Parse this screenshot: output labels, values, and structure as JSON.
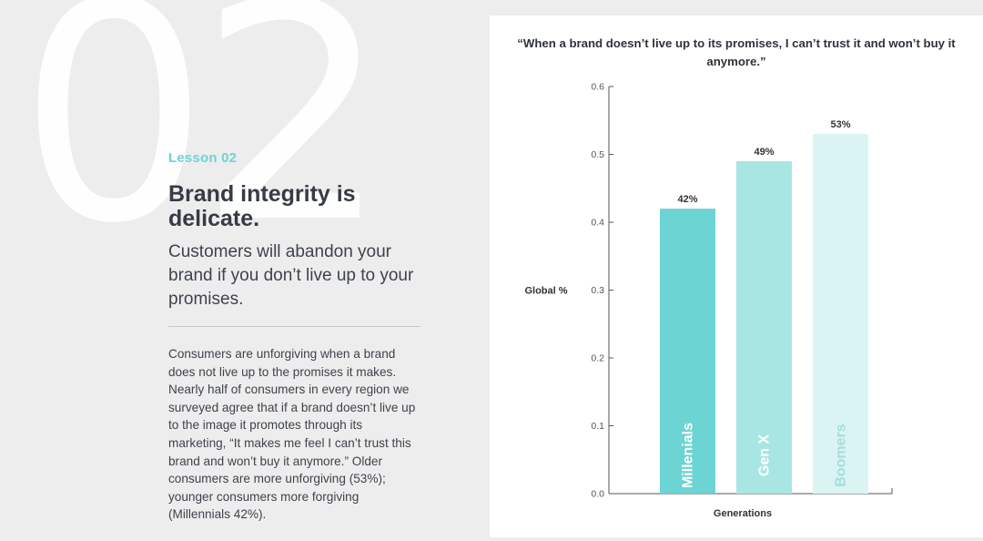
{
  "lesson": {
    "number": "02",
    "label": "Lesson 02",
    "headline": "Brand integrity is delicate.",
    "subhead": "Customers will abandon your brand if you don’t live up to your promises.",
    "body": "Consumers are unforgiving when a brand does not live up to the promises it makes. Nearly half of consumers in every region we surveyed agree that if a brand doesn’t live up to the image it promotes through its marketing, “It makes me feel I can’t trust this brand and won’t buy it anymore.” Older consumers are more unforgiving (53%); younger consumers more forgiving (Millennials 42%)."
  },
  "chart_data": {
    "type": "bar",
    "title": "“When a brand doesn’t live up to its promises, I can’t trust it and won’t buy it anymore.”",
    "xlabel": "Generations",
    "ylabel": "Global %",
    "categories": [
      "Millenials",
      "Gen X",
      "Boomers"
    ],
    "values": [
      0.42,
      0.49,
      0.53
    ],
    "data_labels": [
      "42%",
      "49%",
      "53%"
    ],
    "ylim": [
      0,
      0.6
    ],
    "yticks": [
      "0.0",
      "0.1",
      "0.2",
      "0.3",
      "0.4",
      "0.5",
      "0.6"
    ],
    "grid": false,
    "colors": [
      "#6cd4d3",
      "#a8e6e4",
      "#d9f4f3"
    ],
    "category_label_colors": [
      "#ffffff",
      "#ffffff",
      "#a4dedd"
    ]
  }
}
